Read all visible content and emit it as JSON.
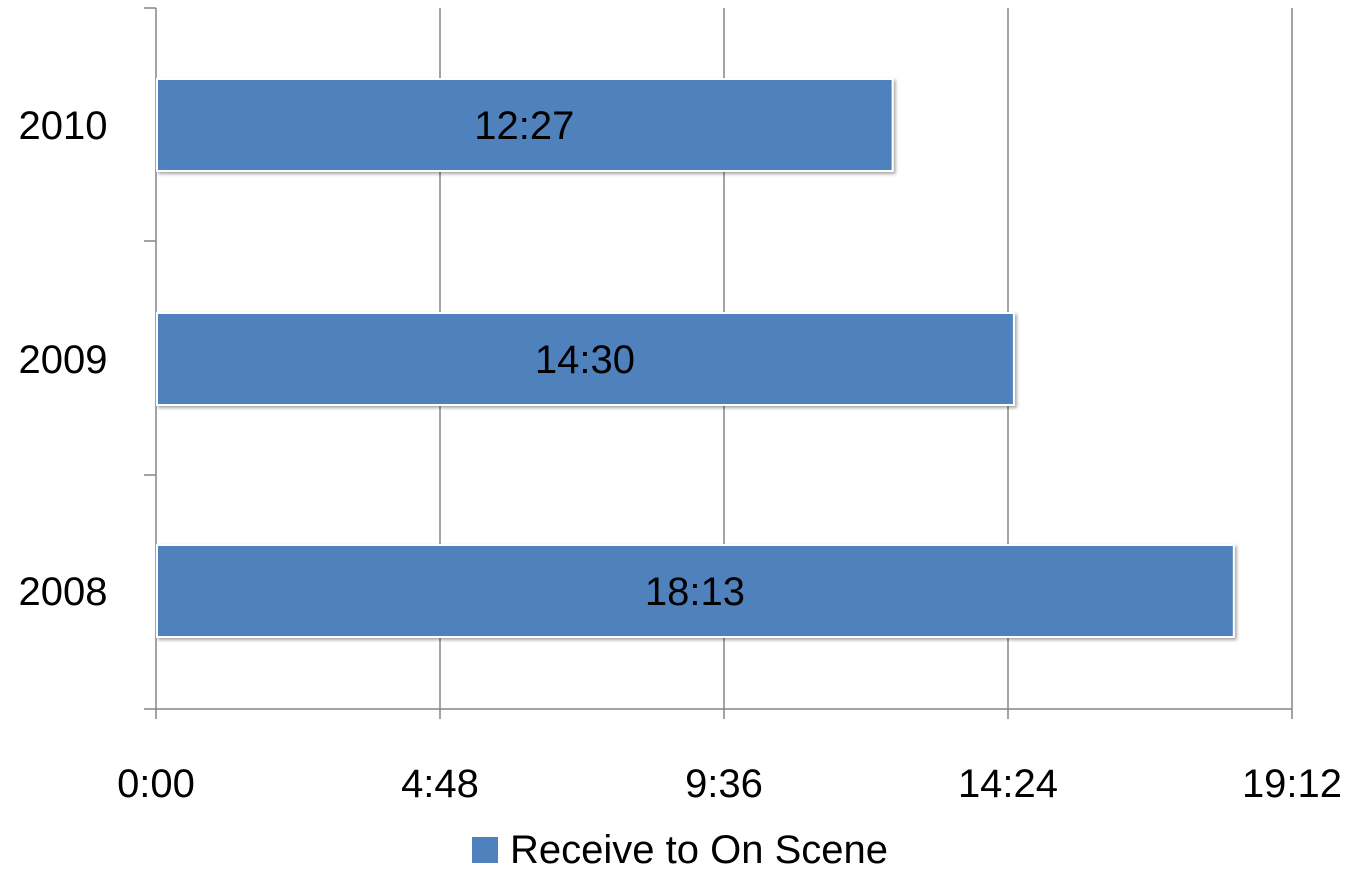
{
  "chart_data": {
    "type": "bar",
    "orientation": "horizontal",
    "x_unit": "minutes:seconds",
    "x_ticks": [
      "0:00",
      "4:48",
      "9:36",
      "14:24",
      "19:12"
    ],
    "xlim": [
      "0:00",
      "19:12"
    ],
    "grid": "vertical gridlines",
    "legend_position": "bottom",
    "series": [
      {
        "name": "Receive to On Scene",
        "color": "#4f81bd",
        "points": [
          {
            "category": "2010",
            "value": "12:27",
            "label": "12:27"
          },
          {
            "category": "2009",
            "value": "14:30",
            "label": "14:30"
          },
          {
            "category": "2008",
            "value": "18:13",
            "label": "18:13"
          }
        ]
      }
    ],
    "title": "",
    "xlabel": "",
    "ylabel": ""
  }
}
